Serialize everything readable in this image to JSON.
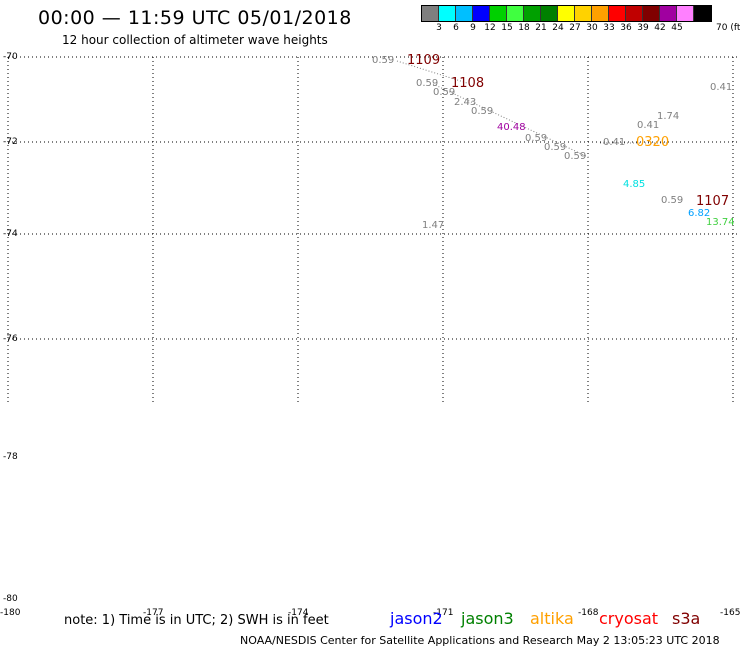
{
  "header": {
    "title": "00:00 — 11:59 UTC 05/01/2018",
    "subtitle": "12 hour collection of altimeter wave heights"
  },
  "legend": {
    "unit": "70 (ft)",
    "colors": [
      "#7f7f7f",
      "#00ffff",
      "#00bfff",
      "#0000ff",
      "#00d000",
      "#40ff40",
      "#00a000",
      "#008000",
      "#ffff00",
      "#ffd200",
      "#ffa000",
      "#ff0000",
      "#c00000",
      "#800000",
      "#a000a0",
      "#ff80ff",
      "#000000"
    ],
    "labels": [
      "3",
      "6",
      "9",
      "12",
      "15",
      "18",
      "21",
      "24",
      "27",
      "30",
      "33",
      "36",
      "39",
      "42",
      "45"
    ]
  },
  "axes": {
    "lat_labels": [
      "-70",
      "-72",
      "-74",
      "-76",
      "-78",
      "-80"
    ],
    "lon_labels": [
      "-180",
      "-177",
      "-174",
      "-171",
      "-168",
      "-165"
    ]
  },
  "observations": [
    {
      "text": "0.59",
      "color": "#808080"
    },
    {
      "text": "0.59",
      "color": "#808080"
    },
    {
      "text": "0.59",
      "color": "#808080"
    },
    {
      "text": "2.43",
      "color": "#808080"
    },
    {
      "text": "0.59",
      "color": "#808080"
    },
    {
      "text": "40.48",
      "color": "#a000a0"
    },
    {
      "text": "0.59",
      "color": "#808080"
    },
    {
      "text": "0.59",
      "color": "#808080"
    },
    {
      "text": "0.59",
      "color": "#808080"
    },
    {
      "text": "0.41",
      "color": "#808080"
    },
    {
      "text": "0.41",
      "color": "#808080"
    },
    {
      "text": "1.74",
      "color": "#808080"
    },
    {
      "text": "0.41",
      "color": "#808080"
    },
    {
      "text": "4.85",
      "color": "#00e0e0"
    },
    {
      "text": "0.59",
      "color": "#808080"
    },
    {
      "text": "6.82",
      "color": "#00a0ff"
    },
    {
      "text": "13.74",
      "color": "#40d040"
    },
    {
      "text": "1.47",
      "color": "#808080"
    }
  ],
  "track_labels": [
    {
      "text": "1109",
      "color": "#800000"
    },
    {
      "text": "1108",
      "color": "#800000"
    },
    {
      "text": "0320",
      "color": "#ffa000"
    },
    {
      "text": "1107",
      "color": "#800000"
    }
  ],
  "footer": {
    "note": "note:  1) Time is in UTC;  2) SWH is in feet",
    "satellites": [
      {
        "name": "jason2",
        "color": "#0000ff"
      },
      {
        "name": "jason3",
        "color": "#008000"
      },
      {
        "name": "altika",
        "color": "#ffa000"
      },
      {
        "name": "cryosat",
        "color": "#ff0000"
      },
      {
        "name": "s3a",
        "color": "#800000"
      }
    ],
    "credit": "NOAA/NESDIS Center for Satellite Applications and Research    May  2 13:05:23 UTC 2018"
  }
}
